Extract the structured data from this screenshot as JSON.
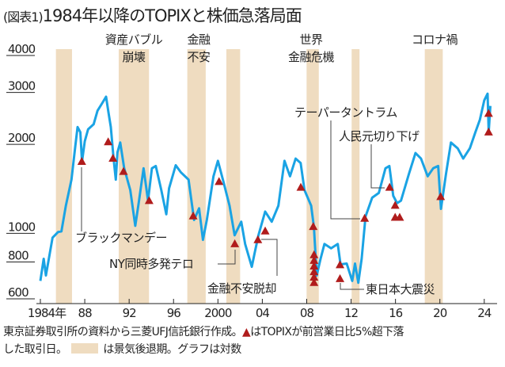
{
  "title_prefix": "(図表1)",
  "title": "1984年以降のTOPIXと株価急落局面",
  "chart_data": {
    "type": "line",
    "yscale": "log",
    "ylim": [
      600,
      4000
    ],
    "xlim": [
      1984,
      2025
    ],
    "yticks": [
      4000,
      3000,
      2000,
      1000,
      800,
      600
    ],
    "xticks": [
      {
        "value": 1984,
        "label": "1984年"
      },
      {
        "value": 1988,
        "label": "88"
      },
      {
        "value": 1992,
        "label": "92"
      },
      {
        "value": 1996,
        "label": "96"
      },
      {
        "value": 2000,
        "label": "2000"
      },
      {
        "value": 2004,
        "label": "04"
      },
      {
        "value": 2008,
        "label": "08"
      },
      {
        "value": 2012,
        "label": "12"
      },
      {
        "value": 2016,
        "label": "16"
      },
      {
        "value": 2020,
        "label": "20"
      },
      {
        "value": 2024,
        "label": "24"
      }
    ],
    "colors": {
      "line": "#1aa3e4",
      "drop_marker": "#b01c1c",
      "recession": "#efdcc0"
    },
    "series": [
      {
        "points": [
          [
            1984.0,
            690
          ],
          [
            1984.3,
            820
          ],
          [
            1984.5,
            720
          ],
          [
            1985.1,
            967
          ],
          [
            1985.6,
            1010
          ],
          [
            1985.9,
            1015
          ],
          [
            1986.3,
            1240
          ],
          [
            1986.8,
            1520
          ],
          [
            1987.15,
            1980
          ],
          [
            1987.35,
            2290
          ],
          [
            1987.6,
            2200
          ],
          [
            1987.75,
            1750
          ],
          [
            1988.0,
            2050
          ],
          [
            1988.3,
            2250
          ],
          [
            1988.8,
            2340
          ],
          [
            1989.15,
            2600
          ],
          [
            1989.6,
            2770
          ],
          [
            1989.92,
            2900
          ],
          [
            1990.15,
            2550
          ],
          [
            1990.35,
            2290
          ],
          [
            1990.6,
            1790
          ],
          [
            1990.8,
            1520
          ],
          [
            1990.95,
            1880
          ],
          [
            1991.2,
            2030
          ],
          [
            1991.55,
            1660
          ],
          [
            1992.1,
            1400
          ],
          [
            1992.55,
            1060
          ],
          [
            1992.85,
            1260
          ],
          [
            1993.3,
            1660
          ],
          [
            1993.7,
            1290
          ],
          [
            1994.05,
            1660
          ],
          [
            1994.4,
            1690
          ],
          [
            1994.9,
            1400
          ],
          [
            1995.35,
            1160
          ],
          [
            1995.6,
            1420
          ],
          [
            1996.2,
            1700
          ],
          [
            1996.65,
            1610
          ],
          [
            1997.35,
            1520
          ],
          [
            1997.85,
            1110
          ],
          [
            1998.3,
            1215
          ],
          [
            1998.65,
            950
          ],
          [
            1999.0,
            1110
          ],
          [
            1999.6,
            1560
          ],
          [
            2000.0,
            1760
          ],
          [
            2000.45,
            1520
          ],
          [
            2001.05,
            1240
          ],
          [
            2001.5,
            985
          ],
          [
            2002.1,
            1095
          ],
          [
            2002.45,
            920
          ],
          [
            2003.05,
            770
          ],
          [
            2003.3,
            855
          ],
          [
            2003.65,
            985
          ],
          [
            2004.26,
            1185
          ],
          [
            2004.85,
            1095
          ],
          [
            2005.45,
            1240
          ],
          [
            2006.0,
            1760
          ],
          [
            2006.5,
            1560
          ],
          [
            2007.0,
            1790
          ],
          [
            2007.45,
            1730
          ],
          [
            2007.8,
            1400
          ],
          [
            2008.4,
            1240
          ],
          [
            2008.65,
            1050
          ],
          [
            2008.9,
            720
          ],
          [
            2009.25,
            820
          ],
          [
            2009.6,
            920
          ],
          [
            2010.2,
            890
          ],
          [
            2010.8,
            920
          ],
          [
            2011.05,
            785
          ],
          [
            2011.6,
            790
          ],
          [
            2012.1,
            690
          ],
          [
            2012.35,
            790
          ],
          [
            2012.65,
            680
          ],
          [
            2012.95,
            820
          ],
          [
            2013.3,
            1140
          ],
          [
            2013.9,
            1320
          ],
          [
            2014.5,
            1370
          ],
          [
            2015.1,
            1660
          ],
          [
            2015.45,
            1690
          ],
          [
            2015.8,
            1340
          ],
          [
            2016.15,
            1265
          ],
          [
            2016.5,
            1290
          ],
          [
            2017.2,
            1585
          ],
          [
            2017.8,
            1870
          ],
          [
            2018.3,
            1790
          ],
          [
            2018.9,
            1560
          ],
          [
            2019.4,
            1660
          ],
          [
            2019.85,
            1690
          ],
          [
            2020.1,
            1210
          ],
          [
            2020.55,
            1585
          ],
          [
            2021.0,
            2030
          ],
          [
            2021.6,
            1940
          ],
          [
            2022.1,
            1790
          ],
          [
            2022.7,
            1940
          ],
          [
            2023.2,
            2200
          ],
          [
            2023.6,
            2420
          ],
          [
            2024.0,
            2820
          ],
          [
            2024.3,
            2970
          ],
          [
            2024.4,
            2200
          ],
          [
            2024.55,
            2700
          ]
        ]
      }
    ],
    "drop_days": [
      [
        1987.73,
        1747
      ],
      [
        1990.11,
        2037
      ],
      [
        1990.54,
        1791
      ],
      [
        1991.49,
        1616
      ],
      [
        1993.8,
        1288
      ],
      [
        1997.77,
        1143
      ],
      [
        2000.1,
        1494
      ],
      [
        2001.52,
        920
      ],
      [
        2003.6,
        949
      ],
      [
        2004.26,
        1016
      ],
      [
        2007.47,
        1428
      ],
      [
        2008.59,
        1052
      ],
      [
        2008.66,
        844
      ],
      [
        2008.66,
        808
      ],
      [
        2008.66,
        773
      ],
      [
        2008.66,
        740
      ],
      [
        2008.66,
        709
      ],
      [
        2008.66,
        680
      ],
      [
        2011.0,
        781
      ],
      [
        2011.0,
        701
      ],
      [
        2013.22,
        1122
      ],
      [
        2015.47,
        1428
      ],
      [
        2015.97,
        1241
      ],
      [
        2015.97,
        1130
      ],
      [
        2016.38,
        1130
      ],
      [
        2020.07,
        1328
      ],
      [
        2024.39,
        2542
      ],
      [
        2024.39,
        2199
      ]
    ],
    "recessions": [
      [
        1985.4,
        1986.85
      ],
      [
        1991.06,
        1993.79
      ],
      [
        1997.24,
        1998.9
      ],
      [
        2000.76,
        2002.0
      ],
      [
        2007.99,
        2009.09
      ],
      [
        2012.05,
        2012.76
      ],
      [
        2018.64,
        2020.26
      ]
    ],
    "event_labels": [
      {
        "lines": [
          "資産バブル",
          "崩壊"
        ]
      },
      {
        "lines": [
          "金融",
          "不安"
        ]
      },
      {
        "lines": [
          "世界",
          "金融危機"
        ]
      },
      {
        "lines": [
          "コロナ禍"
        ]
      }
    ],
    "callouts": [
      {
        "text": "ブラックマンデー"
      },
      {
        "text": "NY同時多発テロ"
      },
      {
        "text": "金融不安脱却"
      },
      {
        "text": "テーパータントラム"
      },
      {
        "text": "人民元切り下げ"
      },
      {
        "text": "東日本大震災"
      }
    ]
  },
  "notes": {
    "line1_a": "東京証券取引所の資料から三菱UFJ信託銀行作成。",
    "marker": "▲",
    "line1_b": "はTOPIXが前営業日比5%超下落",
    "line2_a": "した取引日。",
    "line2_b": "は景気後退期。グラフは対数"
  }
}
